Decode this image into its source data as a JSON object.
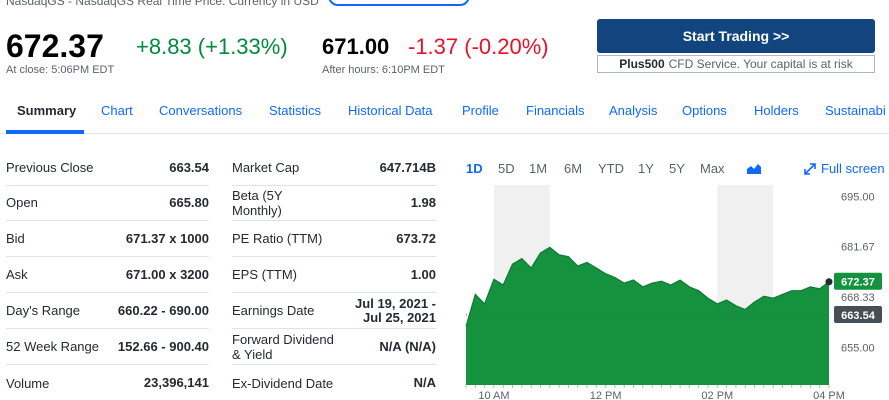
{
  "header": {
    "exchange_line": "NasdaqGS - NasdaqGS Real Time Price. Currency in USD",
    "price": "672.37",
    "change": "+8.83 (+1.33%)",
    "close_time": "At close: 5:06PM EDT",
    "ah_price": "671.00",
    "ah_change": "-1.37 (-0.20%)",
    "ah_time": "After hours: 6:10PM EDT"
  },
  "ad": {
    "button_label": "Start Trading >>",
    "brand": "Plus500",
    "disclaimer": "CFD Service. Your capital is at risk"
  },
  "tabs": [
    "Summary",
    "Chart",
    "Conversations",
    "Statistics",
    "Historical Data",
    "Profile",
    "Financials",
    "Analysis",
    "Options",
    "Holders",
    "Sustainabi"
  ],
  "stats_left": [
    {
      "label": "Previous Close",
      "value": "663.54"
    },
    {
      "label": "Open",
      "value": "665.80"
    },
    {
      "label": "Bid",
      "value": "671.37 x 1000"
    },
    {
      "label": "Ask",
      "value": "671.00 x 3200"
    },
    {
      "label": "Day's Range",
      "value": "660.22 - 690.00"
    },
    {
      "label": "52 Week Range",
      "value": "152.66 - 900.40"
    },
    {
      "label": "Volume",
      "value": "23,396,141"
    }
  ],
  "stats_right": [
    {
      "label": "Market Cap",
      "value": "647.714B"
    },
    {
      "label": "Beta (5Y Monthly)",
      "value": "1.98"
    },
    {
      "label": "PE Ratio (TTM)",
      "value": "673.72"
    },
    {
      "label": "EPS (TTM)",
      "value": "1.00"
    },
    {
      "label": "Earnings Date",
      "value": "Jul 19, 2021 - Jul 25, 2021"
    },
    {
      "label": "Forward Dividend & Yield",
      "value": "N/A (N/A)"
    },
    {
      "label": "Ex-Dividend Date",
      "value": "N/A"
    }
  ],
  "chart": {
    "ranges": [
      "1D",
      "5D",
      "1M",
      "6M",
      "YTD",
      "1Y",
      "5Y",
      "Max"
    ],
    "active_range": "1D",
    "fullscreen_label": "Full screen",
    "colors": {
      "area": "#15923e",
      "line": "#0e7a33",
      "price_tag": "#15923e",
      "prev_tag": "#464e56",
      "link": "#0f69ff"
    }
  },
  "chart_data": {
    "type": "area",
    "x_ticks": [
      "10 AM",
      "12 PM",
      "02 PM",
      "04 PM"
    ],
    "y_ticks": [
      695.0,
      681.67,
      668.33,
      655.0
    ],
    "y_tick_labels": [
      "695.00",
      "681.67",
      "668.33",
      "655.00"
    ],
    "ylim": [
      645,
      698
    ],
    "current_price_label": "672.37",
    "prev_close_label": "663.54",
    "current_price": 672.37,
    "prev_close": 663.54,
    "x": [
      "09:30",
      "09:40",
      "09:50",
      "10:00",
      "10:10",
      "10:20",
      "10:30",
      "10:40",
      "10:50",
      "11:00",
      "11:10",
      "11:20",
      "11:30",
      "11:40",
      "11:50",
      "12:00",
      "12:10",
      "12:20",
      "12:30",
      "12:40",
      "12:50",
      "13:00",
      "13:10",
      "13:20",
      "13:30",
      "13:40",
      "13:50",
      "14:00",
      "14:10",
      "14:20",
      "14:30",
      "14:40",
      "14:50",
      "15:00",
      "15:10",
      "15:20",
      "15:30",
      "15:40",
      "15:50",
      "16:00"
    ],
    "values": [
      660.5,
      669.0,
      666.5,
      673.0,
      671.5,
      677.0,
      678.5,
      676.0,
      680.0,
      681.5,
      679.5,
      679.0,
      676.5,
      677.5,
      676.0,
      674.5,
      673.5,
      672.0,
      672.8,
      671.0,
      672.0,
      672.5,
      671.5,
      672.8,
      671.0,
      670.0,
      668.0,
      666.5,
      667.5,
      666.0,
      665.0,
      667.0,
      668.5,
      668.0,
      669.0,
      670.0,
      670.0,
      671.0,
      670.5,
      672.37
    ]
  }
}
